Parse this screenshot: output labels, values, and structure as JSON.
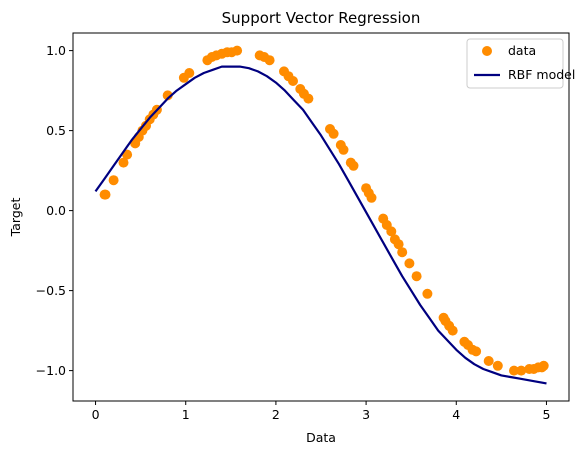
{
  "chart_data": {
    "type": "scatter",
    "title": "Support Vector Regression",
    "xlabel": "Data",
    "ylabel": "Target",
    "xlim": [
      -0.25,
      5.25
    ],
    "ylim": [
      -1.19,
      1.11
    ],
    "x_ticks": [
      0,
      1,
      2,
      3,
      4,
      5
    ],
    "x_tick_labels": [
      "0",
      "1",
      "2",
      "3",
      "4",
      "5"
    ],
    "y_ticks": [
      -1.0,
      -0.5,
      0.0,
      0.5,
      1.0
    ],
    "y_tick_labels": [
      "−1.0",
      "−0.5",
      "0.0",
      "0.5",
      "1.0"
    ],
    "grid": false,
    "legend_position": "top-right",
    "series": [
      {
        "name": "data",
        "kind": "scatter",
        "color": "#ff8c00",
        "x": [
          0.1,
          0.11,
          0.2,
          0.31,
          0.35,
          0.44,
          0.48,
          0.52,
          0.56,
          0.6,
          0.64,
          0.68,
          0.8,
          0.98,
          1.04,
          1.24,
          1.29,
          1.34,
          1.4,
          1.46,
          1.51,
          1.57,
          1.82,
          1.87,
          1.93,
          2.09,
          2.14,
          2.19,
          2.27,
          2.31,
          2.36,
          2.6,
          2.64,
          2.72,
          2.75,
          2.83,
          2.86,
          3.0,
          3.03,
          3.06,
          3.19,
          3.23,
          3.28,
          3.32,
          3.36,
          3.4,
          3.48,
          3.56,
          3.68,
          3.86,
          3.88,
          3.92,
          3.96,
          4.09,
          4.13,
          4.18,
          4.22,
          4.36,
          4.46,
          4.64,
          4.72,
          4.81,
          4.86,
          4.91,
          4.95,
          4.97
        ],
        "y": [
          0.1,
          0.1,
          0.19,
          0.3,
          0.35,
          0.42,
          0.46,
          0.5,
          0.53,
          0.57,
          0.6,
          0.63,
          0.72,
          0.83,
          0.86,
          0.94,
          0.96,
          0.97,
          0.98,
          0.99,
          0.99,
          1.0,
          0.97,
          0.96,
          0.94,
          0.87,
          0.84,
          0.81,
          0.76,
          0.73,
          0.7,
          0.51,
          0.48,
          0.41,
          0.38,
          0.3,
          0.28,
          0.14,
          0.11,
          0.08,
          -0.05,
          -0.09,
          -0.13,
          -0.18,
          -0.21,
          -0.26,
          -0.33,
          -0.41,
          -0.52,
          -0.67,
          -0.69,
          -0.72,
          -0.75,
          -0.82,
          -0.84,
          -0.87,
          -0.88,
          -0.94,
          -0.97,
          -1.0,
          -1.0,
          -0.99,
          -0.99,
          -0.98,
          -0.98,
          -0.97
        ]
      },
      {
        "name": "RBF model",
        "kind": "line",
        "color": "#000080",
        "x": [
          0.0,
          0.1,
          0.2,
          0.3,
          0.4,
          0.5,
          0.6,
          0.7,
          0.8,
          0.9,
          1.0,
          1.1,
          1.2,
          1.3,
          1.4,
          1.5,
          1.6,
          1.7,
          1.8,
          1.9,
          2.0,
          2.1,
          2.2,
          2.3,
          2.4,
          2.5,
          2.6,
          2.7,
          2.8,
          2.9,
          3.0,
          3.1,
          3.2,
          3.3,
          3.4,
          3.5,
          3.6,
          3.7,
          3.8,
          3.9,
          4.0,
          4.1,
          4.2,
          4.3,
          4.4,
          4.5,
          4.6,
          4.7,
          4.8,
          4.9,
          5.0
        ],
        "y": [
          0.12,
          0.2,
          0.28,
          0.36,
          0.44,
          0.51,
          0.58,
          0.64,
          0.7,
          0.75,
          0.79,
          0.83,
          0.86,
          0.88,
          0.9,
          0.9,
          0.9,
          0.89,
          0.87,
          0.84,
          0.8,
          0.75,
          0.69,
          0.63,
          0.55,
          0.47,
          0.38,
          0.29,
          0.19,
          0.09,
          -0.01,
          -0.11,
          -0.21,
          -0.31,
          -0.41,
          -0.5,
          -0.59,
          -0.67,
          -0.75,
          -0.81,
          -0.87,
          -0.92,
          -0.96,
          -0.99,
          -1.01,
          -1.03,
          -1.04,
          -1.05,
          -1.06,
          -1.07,
          -1.08
        ]
      }
    ]
  }
}
